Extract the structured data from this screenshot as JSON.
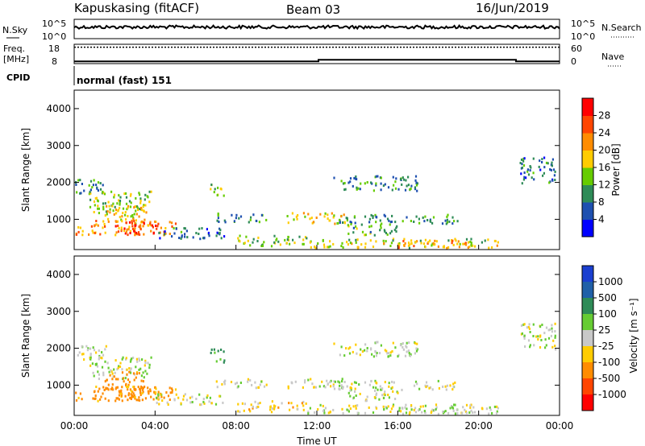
{
  "header": {
    "station": "Kapuskasing (fitACF)",
    "beam": "Beam 03",
    "date": "16/Jun/2019"
  },
  "noise_panel": {
    "left_label": "N.Sky",
    "right_label": "N.Search",
    "left_ticks": [
      "10^5",
      "10^0"
    ],
    "right_ticks": [
      "10^5",
      "10^0"
    ]
  },
  "freq_panel": {
    "left_label_line1": "Freq.",
    "left_label_line2": "[MHz]",
    "right_label": "Nave",
    "left_ticks": [
      "18",
      "8"
    ],
    "right_ticks": [
      "60",
      "0"
    ]
  },
  "cpid": {
    "label": "CPID",
    "mode_text": "normal (fast) 151"
  },
  "x_axis": {
    "label": "Time UT",
    "ticks": [
      "00:00",
      "04:00",
      "08:00",
      "12:00",
      "16:00",
      "20:00",
      "00:00"
    ],
    "range_hours": [
      0,
      24
    ]
  },
  "power_panel": {
    "ylabel": "Slant Range [km]",
    "yticks": [
      "1000",
      "2000",
      "3000",
      "4000"
    ],
    "colorbar_label": "Power [dB]",
    "colorbar_ticks": [
      "4",
      "8",
      "12",
      "16",
      "20",
      "24",
      "28"
    ],
    "colors": [
      "#0000ff",
      "#1e50b0",
      "#2e8b57",
      "#66cc00",
      "#ffcc00",
      "#ff8c00",
      "#ff4500",
      "#ff0000"
    ]
  },
  "velocity_panel": {
    "ylabel": "Slant Range [km]",
    "yticks": [
      "1000",
      "2000",
      "3000",
      "4000"
    ],
    "colorbar_label": "Velocity [m s⁻¹]",
    "colorbar_ticks": [
      "1000",
      "500",
      "100",
      "25",
      "-25",
      "-100",
      "-500",
      "-1000"
    ],
    "colors": [
      "#1a3fd0",
      "#2060a8",
      "#2e8b57",
      "#66cc33",
      "#c8c8c8",
      "#ffcc00",
      "#ff8c00",
      "#ff4500",
      "#ff0000"
    ]
  },
  "chart_data": {
    "type": "heatmap",
    "range_ylim_km": [
      180,
      4500
    ],
    "echo_regions": [
      {
        "t0": 0.0,
        "t1": 1.6,
        "r0": 1700,
        "r1": 2100,
        "pw": 10,
        "vel": 0
      },
      {
        "t0": 0.7,
        "t1": 3.8,
        "r0": 1200,
        "r1": 1800,
        "pw": 14,
        "vel": 5
      },
      {
        "t0": 1.5,
        "t1": 3.6,
        "r0": 900,
        "r1": 1400,
        "pw": 18,
        "vel": -300
      },
      {
        "t0": 0.0,
        "t1": 5.0,
        "r0": 600,
        "r1": 1000,
        "pw": 22,
        "vel": -150
      },
      {
        "t0": 2.0,
        "t1": 4.2,
        "r0": 650,
        "r1": 1000,
        "pw": 27,
        "vel": -120
      },
      {
        "t0": 4.0,
        "t1": 7.5,
        "r0": 500,
        "r1": 800,
        "pw": 8,
        "vel": 0
      },
      {
        "t0": 6.7,
        "t1": 7.4,
        "r0": 1600,
        "r1": 2000,
        "pw": 14,
        "vel": 120
      },
      {
        "t0": 7.0,
        "t1": 9.5,
        "r0": 950,
        "r1": 1200,
        "pw": 10,
        "vel": 0
      },
      {
        "t0": 10.5,
        "t1": 13.5,
        "r0": 900,
        "r1": 1200,
        "pw": 18,
        "vel": 0
      },
      {
        "t0": 13.0,
        "t1": 19.0,
        "r0": 900,
        "r1": 1150,
        "pw": 10,
        "vel": 0
      },
      {
        "t0": 13.5,
        "t1": 16.0,
        "r0": 600,
        "r1": 900,
        "pw": 12,
        "vel": 0
      },
      {
        "t0": 8.0,
        "t1": 11.5,
        "r0": 300,
        "r1": 600,
        "pw": 14,
        "vel": -60
      },
      {
        "t0": 11.5,
        "t1": 21.0,
        "r0": 250,
        "r1": 500,
        "pw": 16,
        "vel": 0
      },
      {
        "t0": 16.0,
        "t1": 19.5,
        "r0": 250,
        "r1": 450,
        "pw": 22,
        "vel": 0
      },
      {
        "t0": 22.0,
        "t1": 23.8,
        "r0": 2000,
        "r1": 2700,
        "pw": 8,
        "vel": 0
      },
      {
        "t0": 12.8,
        "t1": 17.0,
        "r0": 1800,
        "r1": 2200,
        "pw": 9,
        "vel": 0
      }
    ],
    "noise_sky_level": 0.6,
    "freq_level": 0.85,
    "nave_level": 0.2
  }
}
